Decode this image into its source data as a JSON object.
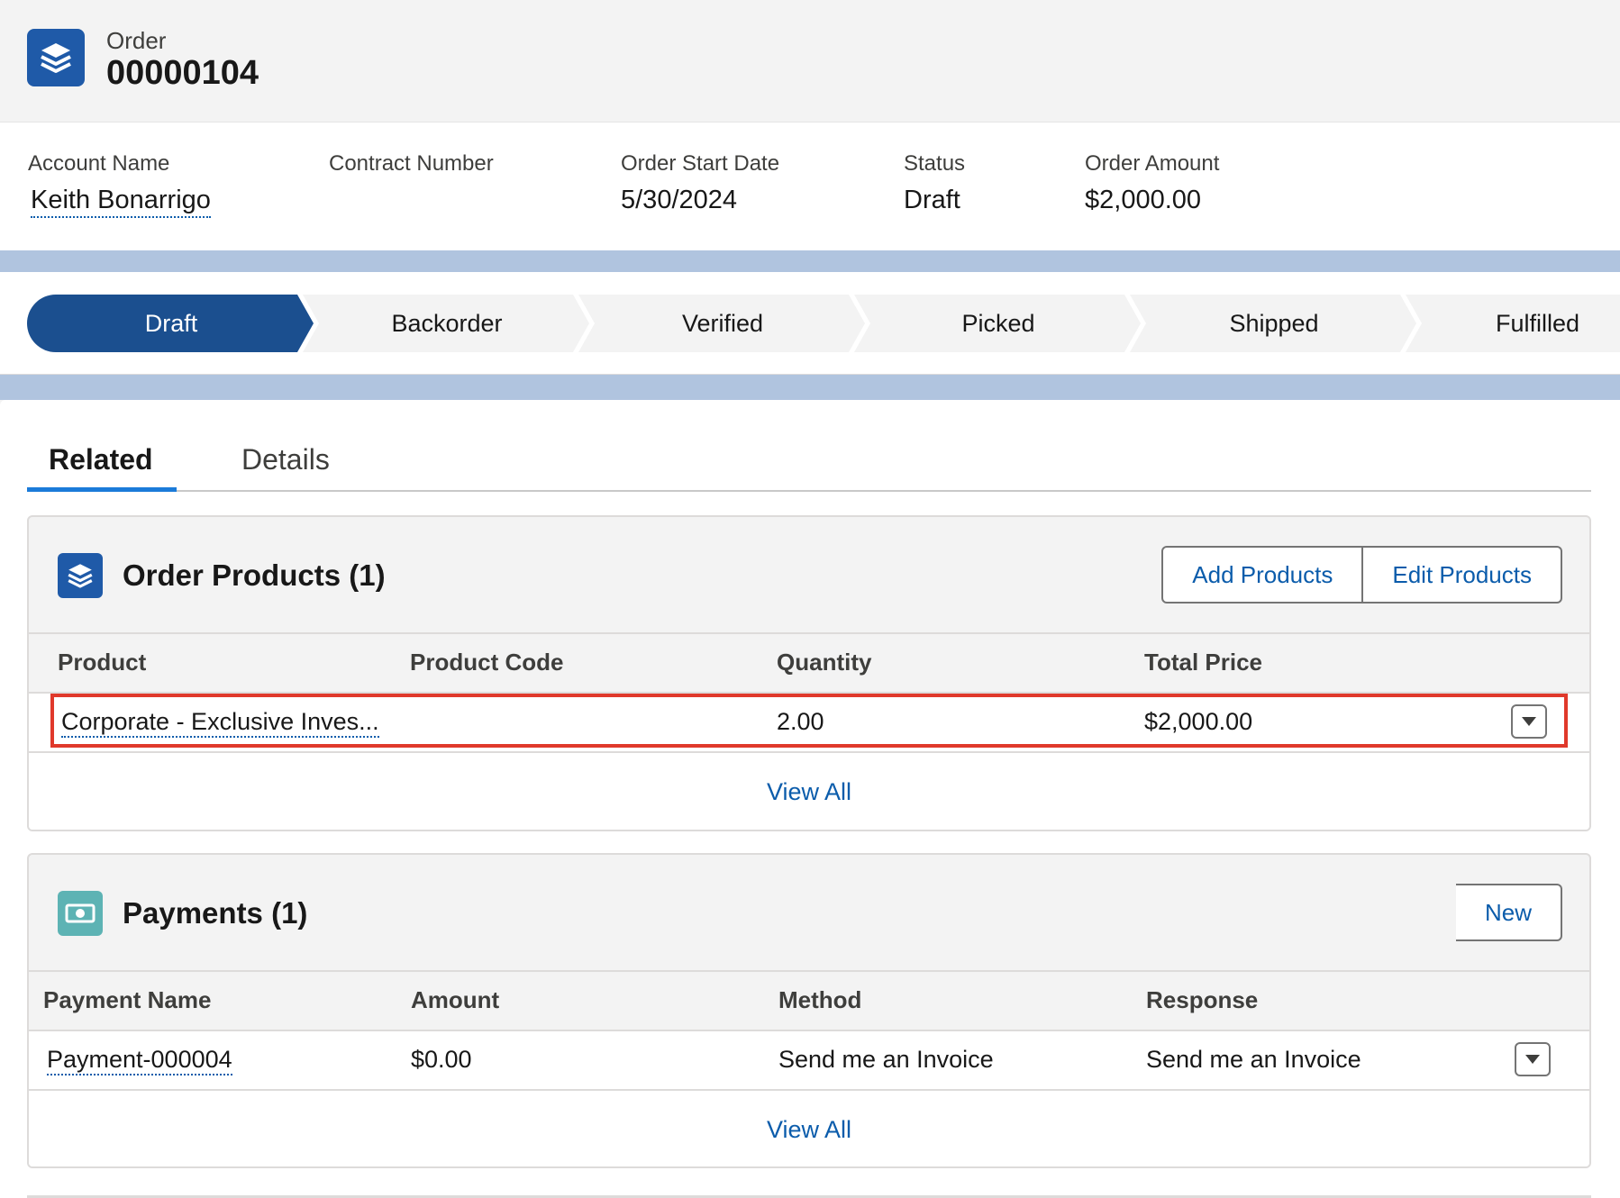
{
  "header": {
    "object_label": "Order",
    "record_number": "00000104",
    "icon": "stack-icon"
  },
  "highlights": [
    {
      "label": "Account Name",
      "value": "Keith Bonarrigo",
      "is_link": true
    },
    {
      "label": "Contract Number",
      "value": ""
    },
    {
      "label": "Order Start Date",
      "value": "5/30/2024"
    },
    {
      "label": "Status",
      "value": "Draft"
    },
    {
      "label": "Order Amount",
      "value": "$2,000.00"
    }
  ],
  "path": {
    "stages": [
      "Draft",
      "Backorder",
      "Verified",
      "Picked",
      "Shipped",
      "Fulfilled"
    ],
    "active_index": 0,
    "active_color": "#1b4f8f",
    "inactive_color": "#f3f3f3"
  },
  "tabs": [
    {
      "label": "Related",
      "active": true
    },
    {
      "label": "Details",
      "active": false
    }
  ],
  "order_products": {
    "title": "Order Products (1)",
    "icon": "stack-icon",
    "icon_color": "#1f5aa8",
    "buttons": [
      "Add Products",
      "Edit Products"
    ],
    "columns": [
      "Product",
      "Product Code",
      "Quantity",
      "Total Price"
    ],
    "rows": [
      {
        "product": "Corporate - Exclusive Inves...",
        "product_code": "",
        "quantity": "2.00",
        "total_price": "$2,000.00"
      }
    ],
    "view_all": "View All",
    "highlight_color": "#e0392b"
  },
  "payments": {
    "title": "Payments (1)",
    "icon": "money-icon",
    "icon_color": "#5db3b4",
    "button": "New",
    "columns": [
      "Payment Name",
      "Amount",
      "Method",
      "Response"
    ],
    "rows": [
      {
        "payment_name": "Payment-000004",
        "amount": "$0.00",
        "method": "Send me an Invoice",
        "response": "Send me an Invoice"
      }
    ],
    "view_all": "View All"
  },
  "colors": {
    "link": "#0b5cab",
    "brand_blue": "#1f5aa8",
    "tab_accent": "#1b7bd9"
  }
}
